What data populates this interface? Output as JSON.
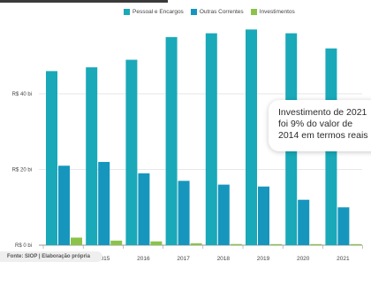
{
  "chart_data": {
    "type": "bar",
    "categories": [
      "2014",
      "2015",
      "2016",
      "2017",
      "2018",
      "2019",
      "2020",
      "2021"
    ],
    "series": [
      {
        "name": "Pessoal e Encargos",
        "color": "#1aa9b8",
        "values": [
          46,
          47,
          49,
          55,
          56,
          57,
          56,
          52
        ]
      },
      {
        "name": "Outras Correntes",
        "color": "#1796bd",
        "values": [
          21,
          22,
          19,
          17,
          16,
          15.5,
          12,
          10
        ]
      },
      {
        "name": "Investimentos",
        "color": "#8bc34a",
        "values": [
          2,
          1.2,
          1,
          0.5,
          0.3,
          0.2,
          0.2,
          0.2
        ]
      }
    ],
    "yticks": [
      0,
      20,
      40
    ],
    "ytick_labels": [
      "R$ 0 bi",
      "R$ 20 bi",
      "R$ 40 bi"
    ],
    "ylim": [
      0,
      60
    ],
    "grid": true,
    "legend": "top",
    "annotation": [
      "Investimento de 2021",
      "foi 9% do valor de",
      "2014 em termos reais"
    ]
  },
  "source": "Fonte: SIOP | Elaboração própria"
}
